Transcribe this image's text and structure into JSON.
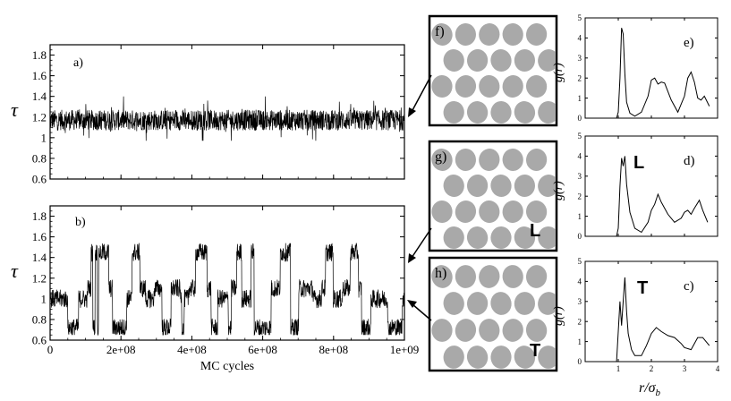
{
  "chart_data": [
    {
      "id": "a",
      "type": "line",
      "panel_label": "a)",
      "ylabel": "τ",
      "xlim": [
        0,
        1000000000
      ],
      "ylim": [
        0.6,
        1.9
      ],
      "yticks": [
        0.6,
        0.8,
        1.0,
        1.2,
        1.4,
        1.6,
        1.8
      ],
      "ytick_labels": [
        "0.6",
        "0.8",
        "1",
        "1.2",
        "1.4",
        "1.6",
        "1.8"
      ],
      "xticks": [
        0,
        200000000,
        400000000,
        600000000,
        800000000,
        1000000000
      ],
      "xtick_labels": [],
      "series": [
        {
          "mean": 1.17,
          "range": [
            0.97,
            1.4
          ],
          "note": "fluctuating"
        }
      ]
    },
    {
      "id": "b",
      "type": "line",
      "panel_label": "b)",
      "ylabel": "τ",
      "xlabel": "MC cycles",
      "xlim": [
        0,
        1000000000
      ],
      "ylim": [
        0.6,
        1.9
      ],
      "yticks": [
        0.6,
        0.8,
        1.0,
        1.2,
        1.4,
        1.6,
        1.8
      ],
      "ytick_labels": [
        "0.6",
        "0.8",
        "1",
        "1.2",
        "1.4",
        "1.6",
        "1.8"
      ],
      "xticks": [
        0,
        200000000,
        400000000,
        600000000,
        800000000,
        1000000000
      ],
      "xtick_labels": [
        "0",
        "2e+08",
        "4e+08",
        "6e+08",
        "8e+08",
        "1e+09"
      ],
      "series": [
        {
          "levels": [
            0.7,
            1.0,
            1.1,
            1.5
          ],
          "range": [
            0.65,
            1.6
          ]
        }
      ]
    },
    {
      "id": "e",
      "type": "line",
      "panel_label": "e)",
      "ylabel": "g(r)",
      "xlim": [
        0,
        4
      ],
      "ylim": [
        0,
        5
      ],
      "yticks": [
        0,
        1,
        2,
        3,
        4,
        5
      ],
      "xticks": [
        1,
        2,
        3,
        4
      ],
      "xtick_labels": [],
      "x": [
        0.85,
        0.95,
        1.0,
        1.05,
        1.1,
        1.15,
        1.2,
        1.25,
        1.35,
        1.5,
        1.7,
        1.9,
        2.0,
        2.1,
        2.2,
        2.3,
        2.4,
        2.6,
        2.8,
        3.0,
        3.1,
        3.2,
        3.3,
        3.4,
        3.5,
        3.6,
        3.75
      ],
      "y": [
        0,
        0,
        0.3,
        2.0,
        4.5,
        4.2,
        2.2,
        0.8,
        0.25,
        0.1,
        0.3,
        1.1,
        1.9,
        2.0,
        1.7,
        1.8,
        1.75,
        0.9,
        0.3,
        1.1,
        2.0,
        2.3,
        1.8,
        1.0,
        0.9,
        1.1,
        0.6
      ]
    },
    {
      "id": "d",
      "type": "line",
      "panel_label": "d)",
      "annotation": "L",
      "ylabel": "g(r)",
      "xlim": [
        0,
        4
      ],
      "ylim": [
        0,
        5
      ],
      "yticks": [
        0,
        1,
        2,
        3,
        4,
        5
      ],
      "xticks": [
        1,
        2,
        3,
        4
      ],
      "xtick_labels": [],
      "x": [
        0.85,
        0.95,
        1.0,
        1.05,
        1.1,
        1.15,
        1.2,
        1.25,
        1.35,
        1.5,
        1.7,
        1.9,
        2.0,
        2.1,
        2.2,
        2.3,
        2.5,
        2.7,
        2.9,
        3.0,
        3.1,
        3.2,
        3.3,
        3.45,
        3.55,
        3.7
      ],
      "y": [
        0,
        0,
        0.4,
        2.5,
        3.9,
        3.5,
        4.0,
        2.6,
        1.2,
        0.4,
        0.2,
        0.7,
        1.3,
        1.6,
        2.1,
        1.7,
        1.1,
        0.7,
        0.9,
        1.2,
        1.3,
        1.1,
        1.4,
        1.8,
        1.3,
        0.7
      ]
    },
    {
      "id": "c",
      "type": "line",
      "panel_label": "c)",
      "annotation": "T",
      "ylabel": "g(r)",
      "xlabel": "r/σ_b",
      "xlim": [
        0,
        4
      ],
      "ylim": [
        0,
        5
      ],
      "yticks": [
        0,
        1,
        2,
        3,
        4,
        5
      ],
      "xticks": [
        1,
        2,
        3,
        4
      ],
      "xtick_labels": [
        "1",
        "2",
        "3",
        "4"
      ],
      "x": [
        0.85,
        0.95,
        1.0,
        1.05,
        1.1,
        1.15,
        1.2,
        1.25,
        1.3,
        1.4,
        1.5,
        1.7,
        1.85,
        2.0,
        2.15,
        2.3,
        2.5,
        2.7,
        2.9,
        3.0,
        3.2,
        3.4,
        3.55,
        3.75
      ],
      "y": [
        0,
        0,
        1.5,
        3.0,
        1.8,
        3.0,
        4.2,
        2.5,
        1.4,
        0.6,
        0.3,
        0.3,
        0.8,
        1.4,
        1.7,
        1.5,
        1.3,
        1.2,
        0.9,
        0.7,
        0.6,
        1.2,
        1.2,
        0.8
      ]
    }
  ],
  "snapshots": [
    {
      "label": "f)",
      "marker": "",
      "rows": 4,
      "cols": 5,
      "fill_color": "#a9a9a9",
      "border_color": "#000000"
    },
    {
      "label": "g)",
      "marker": "L",
      "rows": 4,
      "cols": 5,
      "fill_color": "#a9a9a9",
      "border_color": "#000000"
    },
    {
      "label": "h)",
      "marker": "T",
      "rows": 4,
      "cols": 5,
      "fill_color": "#a9a9a9",
      "border_color": "#000000"
    }
  ],
  "colors": {
    "line": "#000000",
    "particle": "#a9a9a9",
    "background": "#ffffff"
  }
}
